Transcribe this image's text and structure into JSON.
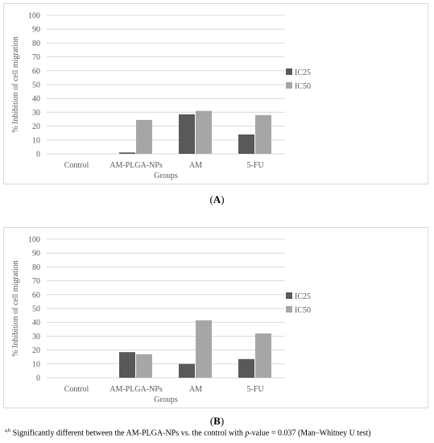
{
  "panels": [
    {
      "label_open": "(",
      "label_letter": "A",
      "label_close": ")"
    },
    {
      "label_open": "(",
      "label_letter": "B",
      "label_close": ")"
    }
  ],
  "footnote": {
    "superscript": "a,b",
    "text_before": " Significantly different between the AM-PLGA-NPs vs. the control with ",
    "p_italic": "p",
    "text_after": "-value = 0.037 (Man–Whitney U test)"
  },
  "colors": {
    "ic25": "#595959",
    "ic50": "#a6a6a6",
    "grid": "#d9d9d9"
  },
  "chart_data": [
    {
      "type": "bar",
      "categories": [
        "Control",
        "AM-PLGA-NPs",
        "AM",
        "5-FU"
      ],
      "series": [
        {
          "name": "IC25",
          "values": [
            0,
            1,
            28.5,
            14
          ]
        },
        {
          "name": "IC50",
          "values": [
            0,
            24.5,
            31,
            28
          ]
        }
      ],
      "xlabel": "Groups",
      "ylabel": "% Inhibition of cell migration",
      "ylim": [
        0,
        100
      ],
      "yticks": [
        0,
        10,
        20,
        30,
        40,
        50,
        60,
        70,
        80,
        90,
        100
      ],
      "grid": true,
      "legend_position": "right"
    },
    {
      "type": "bar",
      "categories": [
        "Control",
        "AM-PLGA-NPs",
        "AM",
        "5-FU"
      ],
      "series": [
        {
          "name": "IC25",
          "values": [
            0,
            18.5,
            10,
            13.5
          ]
        },
        {
          "name": "IC50",
          "values": [
            0,
            17,
            41.5,
            32
          ]
        }
      ],
      "xlabel": "Groups",
      "ylabel": "% Inhibition of cell migration",
      "ylim": [
        0,
        100
      ],
      "yticks": [
        0,
        10,
        20,
        30,
        40,
        50,
        60,
        70,
        80,
        90,
        100
      ],
      "grid": true,
      "legend_position": "right"
    }
  ]
}
